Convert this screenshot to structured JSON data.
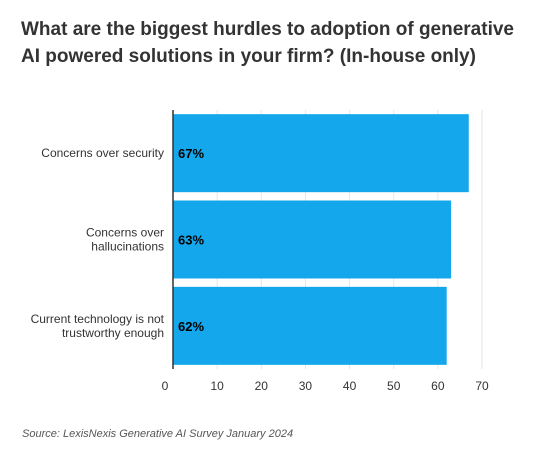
{
  "title": "What are the biggest hurdles to adoption of generative AI powered solutions in your firm? (In-house only)",
  "source": "Source: LexisNexis Generative AI Survey January 2024",
  "chart_data": {
    "type": "bar",
    "orientation": "horizontal",
    "title": "What are the biggest hurdles to adoption of generative AI powered solutions in your firm? (In-house only)",
    "categories": [
      [
        "Concerns over security"
      ],
      [
        "Concerns over",
        "hallucinations"
      ],
      [
        "Current technology is not",
        "trustworthy enough"
      ]
    ],
    "values": [
      67,
      63,
      62
    ],
    "data_labels": [
      "67%",
      "63%",
      "62%"
    ],
    "xlim": [
      0,
      70
    ],
    "xticks": [
      0,
      10,
      20,
      30,
      40,
      50,
      60,
      70
    ],
    "grid": "vertical",
    "bar_color": "#14a7ec",
    "grid_color": "#e6e6e6",
    "axis_color": "#333333"
  }
}
